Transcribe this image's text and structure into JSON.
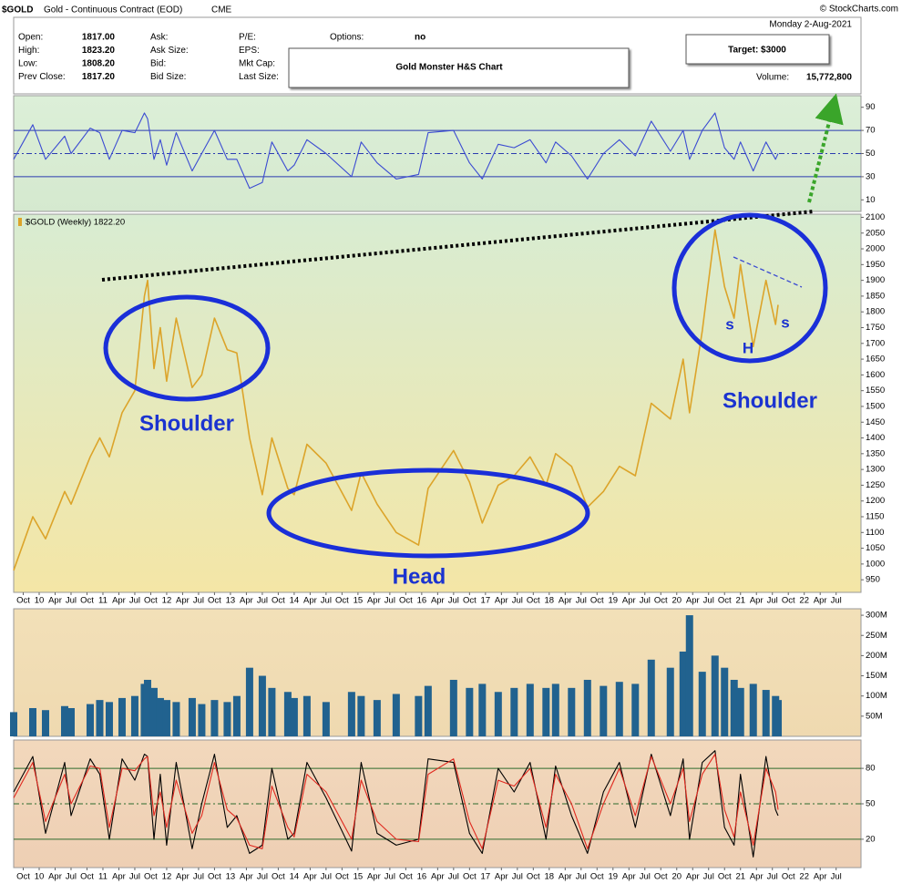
{
  "header": {
    "symbol": "$GOLD",
    "description": "Gold - Continuous Contract (EOD)",
    "exchange": "CME",
    "source": "© StockCharts.com",
    "date": "Monday  2-Aug-2021",
    "quote": [
      [
        "Open:",
        "1817.00"
      ],
      [
        "High:",
        "1823.20"
      ],
      [
        "Low:",
        "1808.20"
      ],
      [
        "Prev Close:",
        "1817.20"
      ]
    ],
    "fields": [
      "Ask:",
      "Ask Size:",
      "Bid:",
      "Bid Size:"
    ],
    "fields2": [
      "P/E:",
      "EPS:",
      "Mkt Cap:",
      "Last Size:"
    ],
    "options": [
      "Options:",
      "no"
    ],
    "volume": [
      "Volume:",
      "15,772,800"
    ]
  },
  "annotations": {
    "title": "Gold Monster H&S Chart",
    "target": "Target: $3000",
    "left_shoulder": "Shoulder",
    "head": "Head",
    "right_shoulder": "Shoulder",
    "small_s1": "s",
    "small_h": "H",
    "small_s2": "s"
  },
  "chart_data": [
    {
      "type": "line",
      "xlim": [
        2009.6,
        2022.89
      ],
      "ylim": [
        0,
        100
      ],
      "yticks": [
        10,
        30,
        50,
        70,
        90
      ],
      "reference_lines": [
        30,
        50,
        70
      ],
      "x": [
        2009.6,
        2009.9,
        2010.1,
        2010.4,
        2010.5,
        2010.8,
        2010.95,
        2011.1,
        2011.3,
        2011.5,
        2011.65,
        2011.7,
        2011.8,
        2011.9,
        2012.0,
        2012.15,
        2012.4,
        2012.55,
        2012.75,
        2012.95,
        2013.1,
        2013.3,
        2013.5,
        2013.65,
        2013.9,
        2014.0,
        2014.2,
        2014.5,
        2014.9,
        2015.05,
        2015.3,
        2015.6,
        2015.95,
        2016.1,
        2016.5,
        2016.75,
        2016.95,
        2017.2,
        2017.45,
        2017.7,
        2017.95,
        2018.1,
        2018.35,
        2018.6,
        2018.85,
        2019.1,
        2019.35,
        2019.6,
        2019.9,
        2020.1,
        2020.2,
        2020.4,
        2020.6,
        2020.75,
        2020.9,
        2021.0,
        2021.2,
        2021.4,
        2021.55,
        2021.59
      ],
      "series": [
        {
          "color": "#3b4bd2",
          "values": [
            45,
            75,
            45,
            65,
            50,
            72,
            68,
            45,
            70,
            68,
            85,
            80,
            45,
            62,
            40,
            68,
            35,
            50,
            70,
            45,
            45,
            20,
            25,
            60,
            35,
            40,
            62,
            50,
            30,
            60,
            42,
            28,
            32,
            68,
            70,
            42,
            28,
            58,
            55,
            62,
            42,
            60,
            48,
            28,
            50,
            62,
            48,
            78,
            52,
            70,
            45,
            70,
            85,
            55,
            45,
            60,
            35,
            60,
            45,
            50
          ]
        }
      ]
    },
    {
      "type": "line",
      "xlim": [
        2009.6,
        2022.89
      ],
      "ylim": [
        910,
        2110
      ],
      "yticks": [
        950,
        1000,
        1050,
        1100,
        1150,
        1200,
        1250,
        1300,
        1350,
        1400,
        1450,
        1500,
        1550,
        1600,
        1650,
        1700,
        1750,
        1800,
        1850,
        1900,
        1950,
        2000,
        2050,
        2100
      ],
      "xticks": [
        {
          "value": 2009.75,
          "label": "Oct"
        },
        {
          "value": 2010,
          "label": "10"
        },
        {
          "value": 2010.25,
          "label": "Apr"
        },
        {
          "value": 2010.5,
          "label": "Jul"
        },
        {
          "value": 2010.75,
          "label": "Oct"
        },
        {
          "value": 2011,
          "label": "11"
        },
        {
          "value": 2011.25,
          "label": "Apr"
        },
        {
          "value": 2011.5,
          "label": "Jul"
        },
        {
          "value": 2011.75,
          "label": "Oct"
        },
        {
          "value": 2012,
          "label": "12"
        },
        {
          "value": 2012.25,
          "label": "Apr"
        },
        {
          "value": 2012.5,
          "label": "Jul"
        },
        {
          "value": 2012.75,
          "label": "Oct"
        },
        {
          "value": 2013,
          "label": "13"
        },
        {
          "value": 2013.25,
          "label": "Apr"
        },
        {
          "value": 2013.5,
          "label": "Jul"
        },
        {
          "value": 2013.75,
          "label": "Oct"
        },
        {
          "value": 2014,
          "label": "14"
        },
        {
          "value": 2014.25,
          "label": "Apr"
        },
        {
          "value": 2014.5,
          "label": "Jul"
        },
        {
          "value": 2014.75,
          "label": "Oct"
        },
        {
          "value": 2015,
          "label": "15"
        },
        {
          "value": 2015.25,
          "label": "Apr"
        },
        {
          "value": 2015.5,
          "label": "Jul"
        },
        {
          "value": 2015.75,
          "label": "Oct"
        },
        {
          "value": 2016,
          "label": "16"
        },
        {
          "value": 2016.25,
          "label": "Apr"
        },
        {
          "value": 2016.5,
          "label": "Jul"
        },
        {
          "value": 2016.75,
          "label": "Oct"
        },
        {
          "value": 2017,
          "label": "17"
        },
        {
          "value": 2017.25,
          "label": "Apr"
        },
        {
          "value": 2017.5,
          "label": "Jul"
        },
        {
          "value": 2017.75,
          "label": "Oct"
        },
        {
          "value": 2018,
          "label": "18"
        },
        {
          "value": 2018.25,
          "label": "Apr"
        },
        {
          "value": 2018.5,
          "label": "Jul"
        },
        {
          "value": 2018.75,
          "label": "Oct"
        },
        {
          "value": 2019,
          "label": "19"
        },
        {
          "value": 2019.25,
          "label": "Apr"
        },
        {
          "value": 2019.5,
          "label": "Jul"
        },
        {
          "value": 2019.75,
          "label": "Oct"
        },
        {
          "value": 2020,
          "label": "20"
        },
        {
          "value": 2020.25,
          "label": "Apr"
        },
        {
          "value": 2020.5,
          "label": "Jul"
        },
        {
          "value": 2020.75,
          "label": "Oct"
        },
        {
          "value": 2021,
          "label": "21"
        },
        {
          "value": 2021.25,
          "label": "Apr"
        },
        {
          "value": 2021.5,
          "label": "Jul"
        },
        {
          "value": 2021.75,
          "label": "Oct"
        },
        {
          "value": 2022,
          "label": "22"
        },
        {
          "value": 2022.25,
          "label": "Apr"
        },
        {
          "value": 2022.5,
          "label": "Jul"
        }
      ],
      "x": [
        2009.6,
        2009.9,
        2010.1,
        2010.4,
        2010.5,
        2010.8,
        2010.95,
        2011.1,
        2011.3,
        2011.5,
        2011.65,
        2011.7,
        2011.8,
        2011.9,
        2012.0,
        2012.15,
        2012.4,
        2012.55,
        2012.75,
        2012.95,
        2013.1,
        2013.3,
        2013.5,
        2013.65,
        2013.9,
        2014.0,
        2014.2,
        2014.5,
        2014.9,
        2015.05,
        2015.3,
        2015.6,
        2015.95,
        2016.1,
        2016.5,
        2016.75,
        2016.95,
        2017.2,
        2017.45,
        2017.7,
        2017.95,
        2018.1,
        2018.35,
        2018.6,
        2018.85,
        2019.1,
        2019.35,
        2019.6,
        2019.9,
        2020.1,
        2020.2,
        2020.4,
        2020.6,
        2020.75,
        2020.9,
        2021.0,
        2021.2,
        2021.4,
        2021.55,
        2021.59
      ],
      "series": [
        {
          "name": "$GOLD (Weekly) 1822.20",
          "color": "#dca42a",
          "values": [
            980,
            1150,
            1080,
            1230,
            1190,
            1340,
            1400,
            1340,
            1480,
            1550,
            1850,
            1900,
            1620,
            1750,
            1580,
            1780,
            1560,
            1600,
            1780,
            1680,
            1670,
            1400,
            1220,
            1400,
            1240,
            1220,
            1380,
            1320,
            1170,
            1290,
            1190,
            1100,
            1060,
            1240,
            1360,
            1260,
            1130,
            1250,
            1280,
            1340,
            1250,
            1350,
            1310,
            1180,
            1230,
            1310,
            1280,
            1510,
            1460,
            1650,
            1480,
            1740,
            2060,
            1880,
            1780,
            1950,
            1690,
            1900,
            1760,
            1822.2
          ]
        }
      ]
    },
    {
      "type": "bar",
      "xlim": [
        2009.6,
        2022.89
      ],
      "ylim": [
        0,
        316000000
      ],
      "yticks": [
        {
          "value": 50000000,
          "label": "50M"
        },
        {
          "value": 100000000,
          "label": "100M"
        },
        {
          "value": 150000000,
          "label": "150M"
        },
        {
          "value": 200000000,
          "label": "200M"
        },
        {
          "value": 250000000,
          "label": "250M"
        },
        {
          "value": 300000000,
          "label": "300M"
        }
      ],
      "x": [
        2009.6,
        2009.9,
        2010.1,
        2010.4,
        2010.5,
        2010.8,
        2010.95,
        2011.1,
        2011.3,
        2011.5,
        2011.65,
        2011.7,
        2011.8,
        2011.9,
        2012.0,
        2012.15,
        2012.4,
        2012.55,
        2012.75,
        2012.95,
        2013.1,
        2013.3,
        2013.5,
        2013.65,
        2013.9,
        2014.0,
        2014.2,
        2014.5,
        2014.9,
        2015.05,
        2015.3,
        2015.6,
        2015.95,
        2016.1,
        2016.5,
        2016.75,
        2016.95,
        2017.2,
        2017.45,
        2017.7,
        2017.95,
        2018.1,
        2018.35,
        2018.6,
        2018.85,
        2019.1,
        2019.35,
        2019.6,
        2019.9,
        2020.1,
        2020.2,
        2020.4,
        2020.6,
        2020.75,
        2020.9,
        2021.0,
        2021.2,
        2021.4,
        2021.55,
        2021.59
      ],
      "series": [
        {
          "color": "#21628f",
          "values": [
            60000000,
            70000000,
            65000000,
            75000000,
            70000000,
            80000000,
            90000000,
            85000000,
            95000000,
            100000000,
            130000000,
            140000000,
            120000000,
            95000000,
            90000000,
            85000000,
            95000000,
            80000000,
            90000000,
            85000000,
            100000000,
            170000000,
            150000000,
            120000000,
            110000000,
            95000000,
            100000000,
            85000000,
            110000000,
            100000000,
            90000000,
            105000000,
            100000000,
            125000000,
            140000000,
            120000000,
            130000000,
            110000000,
            120000000,
            130000000,
            120000000,
            130000000,
            120000000,
            140000000,
            125000000,
            135000000,
            130000000,
            190000000,
            170000000,
            210000000,
            300000000,
            160000000,
            200000000,
            170000000,
            140000000,
            120000000,
            130000000,
            115000000,
            100000000,
            90000000
          ]
        }
      ]
    },
    {
      "type": "line",
      "xlim": [
        2009.6,
        2022.89
      ],
      "ylim": [
        -4,
        104
      ],
      "yticks": [
        20,
        50,
        80
      ],
      "reference_lines": [
        20,
        50,
        80
      ],
      "x": [
        2009.6,
        2009.9,
        2010.1,
        2010.4,
        2010.5,
        2010.8,
        2010.95,
        2011.1,
        2011.3,
        2011.5,
        2011.65,
        2011.7,
        2011.8,
        2011.9,
        2012.0,
        2012.15,
        2012.4,
        2012.55,
        2012.75,
        2012.95,
        2013.1,
        2013.3,
        2013.5,
        2013.65,
        2013.9,
        2014.0,
        2014.2,
        2014.5,
        2014.9,
        2015.05,
        2015.3,
        2015.6,
        2015.95,
        2016.1,
        2016.5,
        2016.75,
        2016.95,
        2017.2,
        2017.45,
        2017.7,
        2017.95,
        2018.1,
        2018.35,
        2018.6,
        2018.85,
        2019.1,
        2019.35,
        2019.6,
        2019.9,
        2020.1,
        2020.2,
        2020.4,
        2020.6,
        2020.75,
        2020.9,
        2021.0,
        2021.2,
        2021.4,
        2021.55,
        2021.59
      ],
      "series": [
        {
          "color": "#000000",
          "values": [
            60,
            90,
            25,
            85,
            40,
            88,
            75,
            20,
            88,
            70,
            92,
            90,
            20,
            75,
            15,
            85,
            12,
            50,
            92,
            30,
            40,
            8,
            15,
            80,
            20,
            25,
            85,
            55,
            10,
            85,
            25,
            15,
            20,
            88,
            85,
            25,
            8,
            80,
            60,
            85,
            20,
            82,
            40,
            8,
            60,
            85,
            30,
            92,
            40,
            88,
            20,
            85,
            95,
            30,
            15,
            75,
            5,
            90,
            45,
            40
          ]
        },
        {
          "color": "#e0281e",
          "values": [
            55,
            85,
            35,
            75,
            50,
            82,
            80,
            30,
            80,
            78,
            88,
            90,
            40,
            60,
            30,
            70,
            25,
            40,
            85,
            45,
            38,
            15,
            12,
            65,
            30,
            22,
            75,
            60,
            20,
            70,
            35,
            20,
            18,
            75,
            88,
            35,
            12,
            70,
            65,
            80,
            30,
            75,
            50,
            12,
            50,
            80,
            40,
            90,
            50,
            80,
            35,
            75,
            92,
            45,
            22,
            60,
            15,
            80,
            60,
            45
          ]
        }
      ]
    }
  ]
}
